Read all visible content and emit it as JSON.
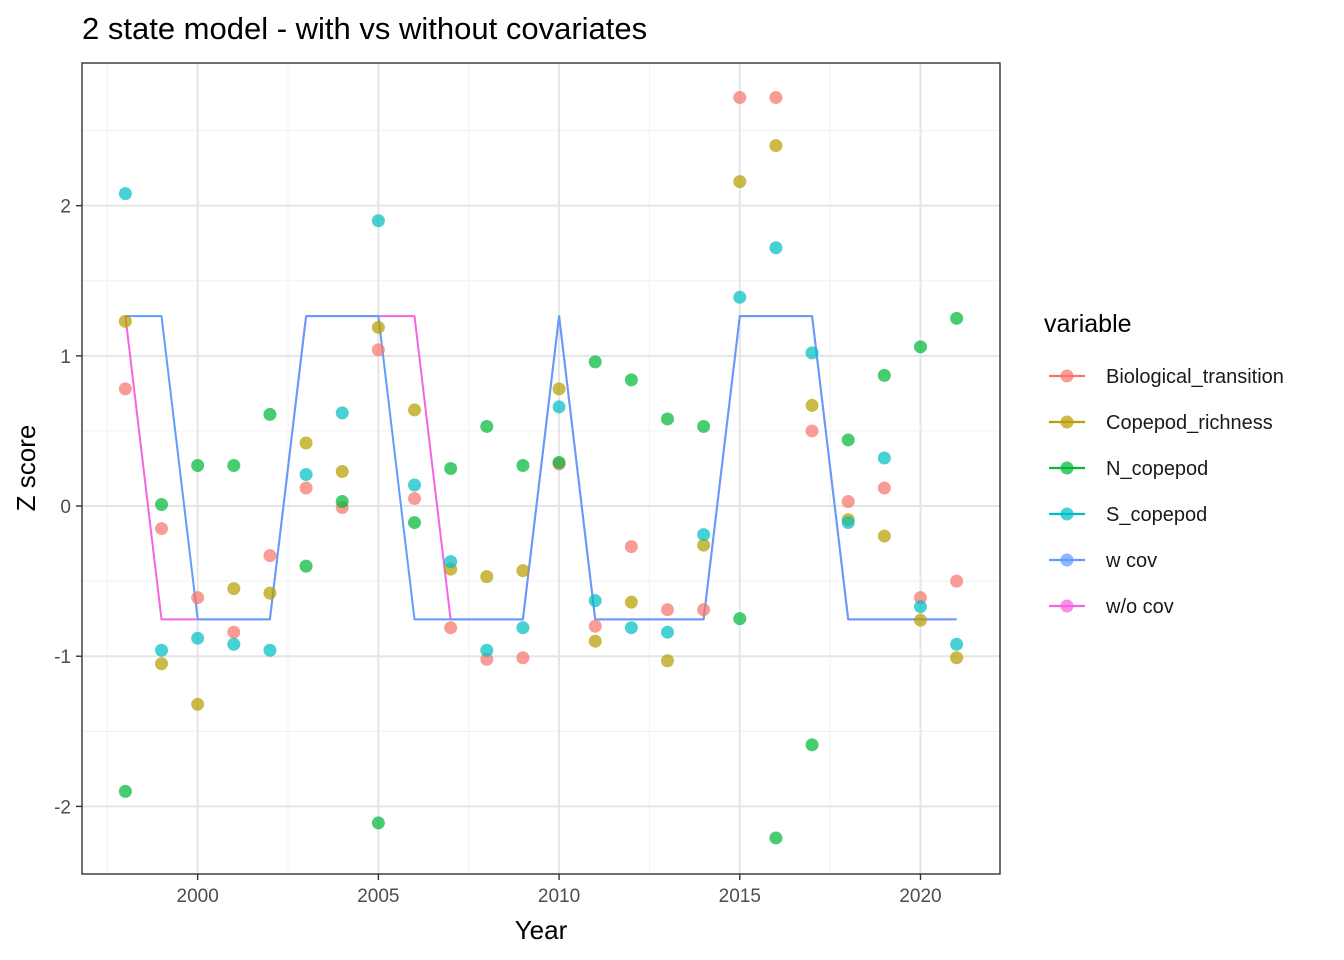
{
  "chart_data": {
    "type": "scatter",
    "title": "2 state model - with vs without covariates",
    "xlabel": "Year",
    "ylabel": "Z score",
    "xlim": [
      1996.8,
      2022.2
    ],
    "ylim": [
      -2.45,
      2.95
    ],
    "x_ticks": [
      2000,
      2005,
      2010,
      2015,
      2020
    ],
    "x_tick_labels": [
      "2000",
      "2005",
      "2010",
      "2015",
      "2020"
    ],
    "y_ticks": [
      -2,
      -1,
      0,
      1,
      2
    ],
    "y_tick_labels": [
      "-2",
      "-1",
      "0",
      "1",
      "2"
    ],
    "grid": true,
    "legend": {
      "title": "variable",
      "position": "right"
    },
    "x": [
      1998,
      1999,
      2000,
      2001,
      2002,
      2003,
      2004,
      2005,
      2006,
      2007,
      2008,
      2009,
      2010,
      2011,
      2012,
      2013,
      2014,
      2015,
      2016,
      2017,
      2018,
      2019,
      2020,
      2021
    ],
    "series": [
      {
        "name": "Biological_transition",
        "kind": "points",
        "color": "#F8766D",
        "values": [
          0.78,
          -0.15,
          -0.61,
          -0.84,
          -0.33,
          0.12,
          -0.01,
          1.04,
          0.05,
          -0.81,
          -1.02,
          -1.01,
          0.28,
          -0.8,
          -0.27,
          -0.69,
          -0.69,
          2.72,
          2.72,
          0.5,
          0.03,
          0.12,
          -0.61,
          -0.5
        ]
      },
      {
        "name": "Copepod_richness",
        "kind": "points",
        "color": "#B79F00",
        "values": [
          1.23,
          -1.05,
          -1.32,
          -0.55,
          -0.58,
          0.42,
          0.23,
          1.19,
          0.64,
          -0.42,
          -0.47,
          -0.43,
          0.78,
          -0.9,
          -0.64,
          -1.03,
          -0.26,
          2.16,
          2.4,
          0.67,
          -0.09,
          -0.2,
          -0.76,
          -1.01
        ]
      },
      {
        "name": "N_copepod",
        "kind": "points",
        "color": "#00BA38",
        "values": [
          -1.9,
          0.01,
          0.27,
          0.27,
          0.61,
          -0.4,
          0.03,
          -2.11,
          -0.11,
          0.25,
          0.53,
          0.27,
          0.29,
          0.96,
          0.84,
          0.58,
          0.53,
          -0.75,
          -2.21,
          -1.59,
          0.44,
          0.87,
          1.06,
          1.25
        ]
      },
      {
        "name": "S_copepod",
        "kind": "points",
        "color": "#00BFC4",
        "values": [
          2.08,
          -0.96,
          -0.88,
          -0.92,
          -0.96,
          0.21,
          0.62,
          1.9,
          0.14,
          -0.37,
          -0.96,
          -0.81,
          0.66,
          -0.63,
          -0.81,
          -0.84,
          -0.19,
          1.39,
          1.72,
          1.02,
          -0.11,
          0.32,
          -0.67,
          -0.92
        ]
      },
      {
        "name": "w cov",
        "kind": "line",
        "color": "#619CFF",
        "values": [
          1.265,
          1.265,
          -0.755,
          -0.755,
          -0.755,
          1.265,
          1.265,
          1.265,
          -0.755,
          -0.755,
          -0.755,
          -0.755,
          1.265,
          -0.755,
          -0.755,
          -0.755,
          -0.755,
          1.265,
          1.265,
          1.265,
          -0.755,
          -0.755,
          -0.755,
          -0.755
        ]
      },
      {
        "name": "w/o cov",
        "kind": "line",
        "color": "#F564E3",
        "values": [
          1.265,
          -0.755,
          -0.755,
          -0.755,
          -0.755,
          1.265,
          1.265,
          1.265,
          1.265,
          -0.755,
          -0.755,
          -0.755,
          1.265,
          -0.755,
          -0.755,
          -0.755,
          -0.755,
          1.265,
          1.265,
          1.265,
          -0.755,
          -0.755,
          -0.755,
          -0.755
        ]
      }
    ]
  }
}
